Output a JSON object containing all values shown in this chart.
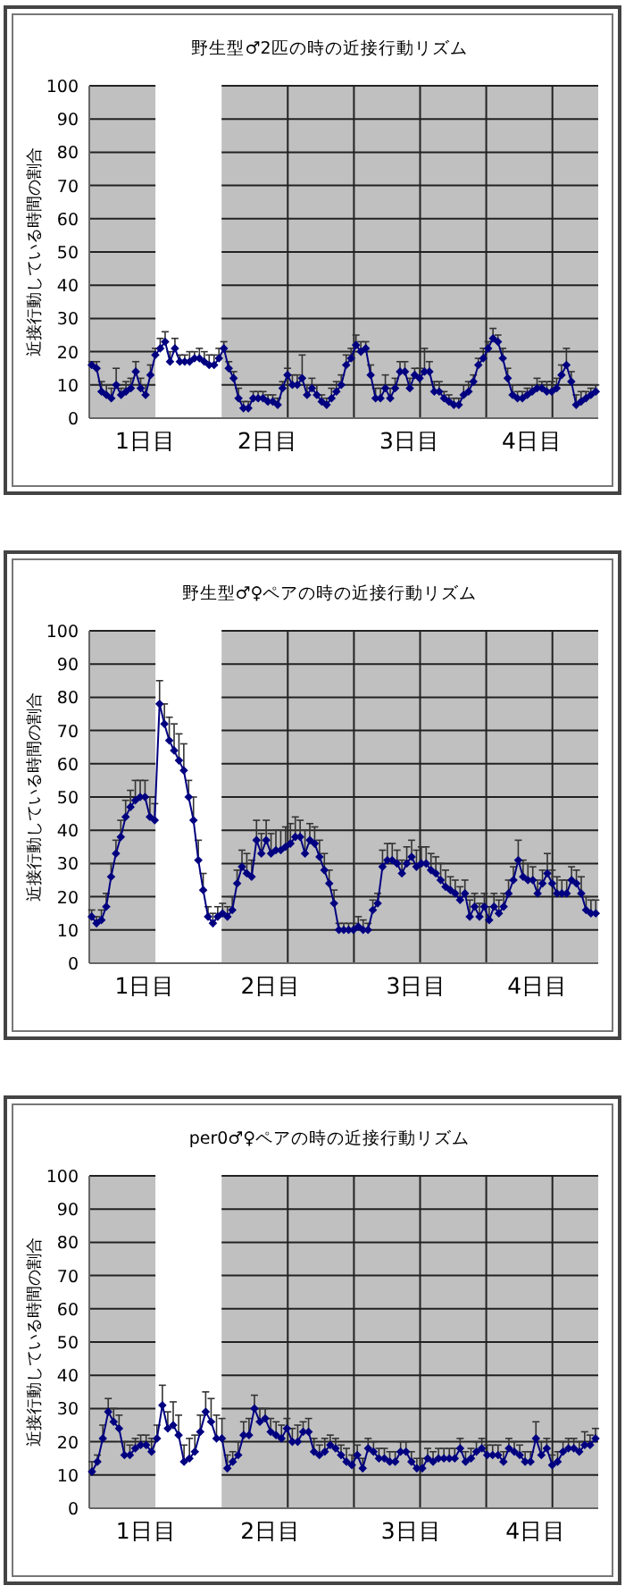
{
  "chart_data": [
    {
      "type": "line",
      "title": "野生型♂2匹の時の近接行動リズム",
      "ylabel": "近接行動している時間の割合",
      "ylim": [
        0,
        100
      ],
      "yticks": [
        0,
        10,
        20,
        30,
        40,
        50,
        60,
        70,
        80,
        90,
        100
      ],
      "grid": "y",
      "marker": "diamond",
      "line_style": "solid",
      "categories": [
        null,
        null,
        null,
        null,
        null,
        null,
        null,
        null,
        null,
        null,
        null,
        "1日目",
        null,
        null,
        null,
        null,
        null,
        null,
        null,
        null,
        null,
        null,
        null,
        null,
        null,
        null,
        null,
        null,
        null,
        null,
        null,
        null,
        null,
        null,
        null,
        null,
        "2日目",
        null,
        null,
        null,
        null,
        null,
        null,
        null,
        null,
        null,
        null,
        null,
        null,
        null,
        null,
        null,
        null,
        null,
        null,
        null,
        null,
        null,
        null,
        null,
        null,
        null,
        null,
        null,
        null,
        "3日目",
        null,
        null,
        null,
        null,
        null,
        null,
        null,
        null,
        null,
        null,
        null,
        null,
        null,
        null,
        null,
        null,
        null,
        null,
        null,
        null,
        null,
        null,
        null,
        null,
        "4日目",
        null,
        null,
        null,
        null,
        null,
        null,
        null,
        null,
        null,
        null,
        null,
        null,
        null
      ],
      "series": [
        {
          "color": "#000080",
          "values": [
            16,
            15,
            8,
            7,
            6,
            10,
            7,
            8,
            9,
            14,
            9,
            7,
            13,
            19,
            21,
            23,
            17,
            21,
            17,
            17,
            17,
            18,
            18,
            17,
            16,
            16,
            18,
            21,
            15,
            12,
            6,
            3,
            3,
            6,
            6,
            6,
            5,
            5,
            4,
            9,
            13,
            10,
            10,
            12,
            7,
            9,
            7,
            5,
            4,
            6,
            8,
            10,
            16,
            18,
            22,
            20,
            21,
            13,
            6,
            6,
            9,
            6,
            9,
            14,
            14,
            9,
            13,
            12,
            14,
            14,
            8,
            8,
            6,
            5,
            4,
            4,
            7,
            8,
            11,
            16,
            18,
            21,
            24,
            23,
            18,
            12,
            7,
            6,
            6,
            7,
            8,
            9,
            9,
            8,
            8,
            9,
            13,
            16,
            11,
            4,
            5,
            6,
            7,
            8
          ],
          "errors": [
            [
              16,
              17
            ],
            [
              15,
              17
            ],
            [
              8,
              11
            ],
            [
              7,
              10
            ],
            [
              6,
              9
            ],
            [
              10,
              15
            ],
            [
              7,
              9
            ],
            [
              8,
              11
            ],
            [
              9,
              12
            ],
            [
              14,
              17
            ],
            [
              9,
              12
            ],
            [
              7,
              10
            ],
            [
              13,
              16
            ],
            [
              19,
              21
            ],
            [
              21,
              24
            ],
            [
              23,
              26
            ],
            [
              17,
              20
            ],
            [
              21,
              24
            ],
            [
              17,
              19
            ],
            [
              17,
              19
            ],
            [
              17,
              20
            ],
            [
              18,
              20
            ],
            [
              18,
              21
            ],
            [
              17,
              20
            ],
            [
              16,
              19
            ],
            [
              16,
              19
            ],
            [
              18,
              21
            ],
            [
              21,
              23
            ],
            [
              15,
              17
            ],
            [
              12,
              14
            ],
            [
              6,
              9
            ],
            [
              3,
              5
            ],
            [
              3,
              5
            ],
            [
              6,
              8
            ],
            [
              6,
              8
            ],
            [
              6,
              8
            ],
            [
              5,
              7
            ],
            [
              5,
              7
            ],
            [
              4,
              6
            ],
            [
              9,
              11
            ],
            [
              13,
              15
            ],
            [
              10,
              13
            ],
            [
              10,
              13
            ],
            [
              12,
              19
            ],
            [
              7,
              10
            ],
            [
              9,
              12
            ],
            [
              7,
              10
            ],
            [
              5,
              7
            ],
            [
              4,
              6
            ],
            [
              6,
              9
            ],
            [
              8,
              11
            ],
            [
              10,
              13
            ],
            [
              16,
              19
            ],
            [
              18,
              21
            ],
            [
              22,
              25
            ],
            [
              20,
              23
            ],
            [
              21,
              23
            ],
            [
              13,
              16
            ],
            [
              6,
              9
            ],
            [
              6,
              9
            ],
            [
              9,
              13
            ],
            [
              6,
              9
            ],
            [
              9,
              12
            ],
            [
              14,
              17
            ],
            [
              14,
              17
            ],
            [
              9,
              12
            ],
            [
              13,
              15
            ],
            [
              12,
              15
            ],
            [
              14,
              21
            ],
            [
              14,
              17
            ],
            [
              8,
              11
            ],
            [
              8,
              11
            ],
            [
              6,
              8
            ],
            [
              5,
              7
            ],
            [
              4,
              6
            ],
            [
              4,
              6
            ],
            [
              7,
              10
            ],
            [
              8,
              11
            ],
            [
              11,
              13
            ],
            [
              16,
              18
            ],
            [
              18,
              21
            ],
            [
              21,
              23
            ],
            [
              24,
              27
            ],
            [
              23,
              25
            ],
            [
              18,
              21
            ],
            [
              12,
              15
            ],
            [
              7,
              10
            ],
            [
              6,
              8
            ],
            [
              6,
              8
            ],
            [
              7,
              9
            ],
            [
              8,
              10
            ],
            [
              9,
              12
            ],
            [
              9,
              11
            ],
            [
              8,
              11
            ],
            [
              8,
              11
            ],
            [
              9,
              12
            ],
            [
              13,
              16
            ],
            [
              16,
              21
            ],
            [
              11,
              14
            ],
            [
              4,
              7
            ],
            [
              5,
              8
            ],
            [
              6,
              8
            ],
            [
              7,
              9
            ],
            [
              8,
              10
            ]
          ]
        }
      ]
    },
    {
      "type": "line",
      "title": "野生型♂♀ペアの時の近接行動リズム",
      "ylabel": "近接行動している時間の割合",
      "ylim": [
        0,
        100
      ],
      "yticks": [
        0,
        10,
        20,
        30,
        40,
        50,
        60,
        70,
        80,
        90,
        100
      ],
      "grid": "y",
      "marker": "diamond",
      "line_style": "solid",
      "categories": [
        null,
        null,
        null,
        null,
        null,
        null,
        null,
        null,
        null,
        null,
        null,
        "1日目",
        null,
        null,
        null,
        null,
        null,
        null,
        null,
        null,
        null,
        null,
        null,
        null,
        null,
        null,
        null,
        null,
        null,
        null,
        null,
        null,
        null,
        null,
        null,
        null,
        null,
        "2日目",
        null,
        null,
        null,
        null,
        null,
        null,
        null,
        null,
        null,
        null,
        null,
        null,
        null,
        null,
        null,
        null,
        null,
        null,
        null,
        null,
        null,
        null,
        null,
        null,
        null,
        null,
        null,
        null,
        null,
        "3日目",
        null,
        null,
        null,
        null,
        null,
        null,
        null,
        null,
        null,
        null,
        null,
        null,
        null,
        null,
        null,
        null,
        null,
        null,
        null,
        null,
        null,
        null,
        null,
        null,
        "4日目",
        null,
        null,
        null,
        null,
        null,
        null,
        null,
        null,
        null,
        null,
        null,
        null
      ],
      "series": [
        {
          "color": "#000080",
          "values": [
            14,
            12,
            13,
            17,
            26,
            33,
            38,
            44,
            47,
            49,
            50,
            50,
            44,
            43,
            78,
            72,
            67,
            64,
            61,
            58,
            50,
            43,
            31,
            22,
            14,
            12,
            14,
            15,
            14,
            16,
            24,
            29,
            27,
            26,
            37,
            33,
            37,
            33,
            34,
            34,
            35,
            36,
            38,
            38,
            33,
            37,
            36,
            32,
            28,
            24,
            18,
            10,
            10,
            10,
            10,
            11,
            10,
            10,
            16,
            18,
            29,
            31,
            31,
            30,
            27,
            30,
            32,
            29,
            30,
            30,
            28,
            27,
            25,
            23,
            22,
            21,
            19,
            21,
            14,
            17,
            14,
            17,
            13,
            17,
            15,
            17,
            21,
            25,
            31,
            26,
            25,
            25,
            21,
            24,
            27,
            24,
            21,
            21,
            21,
            25,
            24,
            21,
            16,
            15,
            15
          ],
          "errors": [
            [
              14,
              16
            ],
            [
              12,
              14
            ],
            [
              13,
              16
            ],
            [
              17,
              21
            ],
            [
              26,
              30
            ],
            [
              33,
              37
            ],
            [
              38,
              43
            ],
            [
              44,
              49
            ],
            [
              47,
              52
            ],
            [
              49,
              55
            ],
            [
              50,
              55
            ],
            [
              50,
              55
            ],
            [
              44,
              50
            ],
            [
              43,
              48
            ],
            [
              78,
              85
            ],
            [
              72,
              78
            ],
            [
              67,
              74
            ],
            [
              64,
              72
            ],
            [
              61,
              69
            ],
            [
              58,
              66
            ],
            [
              50,
              55
            ],
            [
              43,
              50
            ],
            [
              31,
              37
            ],
            [
              22,
              27
            ],
            [
              14,
              17
            ],
            [
              12,
              15
            ],
            [
              14,
              17
            ],
            [
              15,
              18
            ],
            [
              14,
              17
            ],
            [
              16,
              20
            ],
            [
              24,
              28
            ],
            [
              29,
              34
            ],
            [
              27,
              33
            ],
            [
              26,
              31
            ],
            [
              37,
              43
            ],
            [
              33,
              39
            ],
            [
              37,
              43
            ],
            [
              33,
              39
            ],
            [
              34,
              40
            ],
            [
              34,
              40
            ],
            [
              35,
              41
            ],
            [
              36,
              42
            ],
            [
              38,
              44
            ],
            [
              38,
              43
            ],
            [
              33,
              40
            ],
            [
              37,
              42
            ],
            [
              36,
              41
            ],
            [
              32,
              37
            ],
            [
              28,
              33
            ],
            [
              24,
              28
            ],
            [
              18,
              22
            ],
            [
              10,
              12
            ],
            [
              10,
              12
            ],
            [
              10,
              12
            ],
            [
              10,
              12
            ],
            [
              11,
              14
            ],
            [
              10,
              13
            ],
            [
              10,
              12
            ],
            [
              16,
              19
            ],
            [
              18,
              21
            ],
            [
              29,
              34
            ],
            [
              31,
              36
            ],
            [
              31,
              36
            ],
            [
              30,
              34
            ],
            [
              27,
              31
            ],
            [
              30,
              35
            ],
            [
              32,
              37
            ],
            [
              29,
              34
            ],
            [
              30,
              35
            ],
            [
              30,
              35
            ],
            [
              28,
              33
            ],
            [
              27,
              32
            ],
            [
              25,
              30
            ],
            [
              23,
              28
            ],
            [
              22,
              26
            ],
            [
              21,
              25
            ],
            [
              19,
              23
            ],
            [
              21,
              25
            ],
            [
              14,
              19
            ],
            [
              17,
              21
            ],
            [
              14,
              18
            ],
            [
              17,
              21
            ],
            [
              13,
              17
            ],
            [
              17,
              21
            ],
            [
              15,
              19
            ],
            [
              17,
              21
            ],
            [
              21,
              25
            ],
            [
              25,
              29
            ],
            [
              31,
              37
            ],
            [
              26,
              31
            ],
            [
              25,
              30
            ],
            [
              25,
              29
            ],
            [
              21,
              25
            ],
            [
              24,
              28
            ],
            [
              27,
              33
            ],
            [
              24,
              28
            ],
            [
              21,
              26
            ],
            [
              21,
              25
            ],
            [
              21,
              25
            ],
            [
              25,
              29
            ],
            [
              24,
              28
            ],
            [
              21,
              26
            ],
            [
              16,
              20
            ],
            [
              15,
              19
            ],
            [
              15,
              19
            ]
          ]
        }
      ]
    },
    {
      "type": "line",
      "title": "per0♂♀ペアの時の近接行動リズム",
      "ylabel": "近接行動している時間の割合",
      "ylim": [
        0,
        100
      ],
      "yticks": [
        0,
        10,
        20,
        30,
        40,
        50,
        60,
        70,
        80,
        90,
        100
      ],
      "grid": "y",
      "marker": "diamond",
      "line_style": "solid",
      "categories": [
        null,
        null,
        null,
        null,
        null,
        null,
        null,
        null,
        null,
        null,
        "1日目",
        null,
        null,
        null,
        null,
        null,
        null,
        null,
        null,
        null,
        null,
        null,
        null,
        null,
        null,
        null,
        null,
        null,
        null,
        null,
        null,
        null,
        null,
        "2日目",
        null,
        null,
        null,
        null,
        null,
        null,
        null,
        null,
        null,
        null,
        null,
        null,
        null,
        null,
        null,
        null,
        null,
        null,
        null,
        null,
        null,
        null,
        null,
        null,
        null,
        "3日目",
        null,
        null,
        null,
        null,
        null,
        null,
        null,
        null,
        null,
        null,
        null,
        null,
        null,
        null,
        null,
        null,
        null,
        null,
        null,
        null,
        null,
        null,
        "4日目",
        null,
        null,
        null,
        null,
        null,
        null,
        null,
        null,
        null,
        null,
        null
      ],
      "series": [
        {
          "color": "#000080",
          "values": [
            11,
            14,
            21,
            29,
            26,
            24,
            16,
            16,
            18,
            19,
            19,
            17,
            21,
            31,
            24,
            25,
            22,
            14,
            15,
            17,
            23,
            29,
            26,
            21,
            21,
            12,
            14,
            16,
            22,
            22,
            30,
            26,
            27,
            23,
            22,
            21,
            24,
            20,
            20,
            23,
            23,
            17,
            16,
            17,
            19,
            18,
            16,
            14,
            13,
            16,
            12,
            18,
            17,
            15,
            15,
            14,
            14,
            17,
            17,
            14,
            12,
            12,
            15,
            14,
            15,
            15,
            15,
            15,
            18,
            14,
            15,
            17,
            18,
            16,
            16,
            16,
            14,
            18,
            17,
            16,
            14,
            14,
            21,
            16,
            18,
            13,
            14,
            17,
            18,
            18,
            17,
            19,
            19,
            21
          ],
          "errors": [
            [
              11,
              14
            ],
            [
              14,
              16
            ],
            [
              21,
              25
            ],
            [
              29,
              33
            ],
            [
              26,
              30
            ],
            [
              24,
              28
            ],
            [
              16,
              20
            ],
            [
              16,
              19
            ],
            [
              18,
              21
            ],
            [
              19,
              22
            ],
            [
              19,
              22
            ],
            [
              17,
              21
            ],
            [
              21,
              25
            ],
            [
              31,
              37
            ],
            [
              24,
              29
            ],
            [
              25,
              32
            ],
            [
              22,
              28
            ],
            [
              14,
              19
            ],
            [
              15,
              21
            ],
            [
              17,
              22
            ],
            [
              23,
              28
            ],
            [
              29,
              35
            ],
            [
              26,
              33
            ],
            [
              21,
              28
            ],
            [
              21,
              27
            ],
            [
              12,
              16
            ],
            [
              14,
              17
            ],
            [
              16,
              20
            ],
            [
              22,
              26
            ],
            [
              22,
              27
            ],
            [
              30,
              34
            ],
            [
              26,
              30
            ],
            [
              27,
              30
            ],
            [
              23,
              27
            ],
            [
              22,
              26
            ],
            [
              21,
              25
            ],
            [
              24,
              27
            ],
            [
              20,
              24
            ],
            [
              20,
              25
            ],
            [
              23,
              26
            ],
            [
              23,
              27
            ],
            [
              17,
              21
            ],
            [
              16,
              19
            ],
            [
              17,
              21
            ],
            [
              19,
              22
            ],
            [
              18,
              21
            ],
            [
              16,
              19
            ],
            [
              14,
              18
            ],
            [
              13,
              16
            ],
            [
              16,
              19
            ],
            [
              12,
              15
            ],
            [
              18,
              21
            ],
            [
              17,
              20
            ],
            [
              15,
              18
            ],
            [
              15,
              18
            ],
            [
              14,
              17
            ],
            [
              14,
              17
            ],
            [
              17,
              20
            ],
            [
              17,
              20
            ],
            [
              14,
              17
            ],
            [
              12,
              15
            ],
            [
              12,
              15
            ],
            [
              15,
              18
            ],
            [
              14,
              17
            ],
            [
              15,
              18
            ],
            [
              15,
              18
            ],
            [
              15,
              18
            ],
            [
              15,
              18
            ],
            [
              18,
              21
            ],
            [
              14,
              17
            ],
            [
              15,
              18
            ],
            [
              17,
              20
            ],
            [
              18,
              21
            ],
            [
              16,
              19
            ],
            [
              16,
              19
            ],
            [
              16,
              19
            ],
            [
              14,
              17
            ],
            [
              18,
              21
            ],
            [
              17,
              20
            ],
            [
              16,
              19
            ],
            [
              14,
              17
            ],
            [
              14,
              17
            ],
            [
              21,
              26
            ],
            [
              16,
              20
            ],
            [
              18,
              21
            ],
            [
              13,
              16
            ],
            [
              14,
              17
            ],
            [
              17,
              20
            ],
            [
              18,
              21
            ],
            [
              18,
              21
            ],
            [
              17,
              20
            ],
            [
              19,
              23
            ],
            [
              19,
              22
            ],
            [
              21,
              24
            ]
          ]
        }
      ]
    }
  ]
}
